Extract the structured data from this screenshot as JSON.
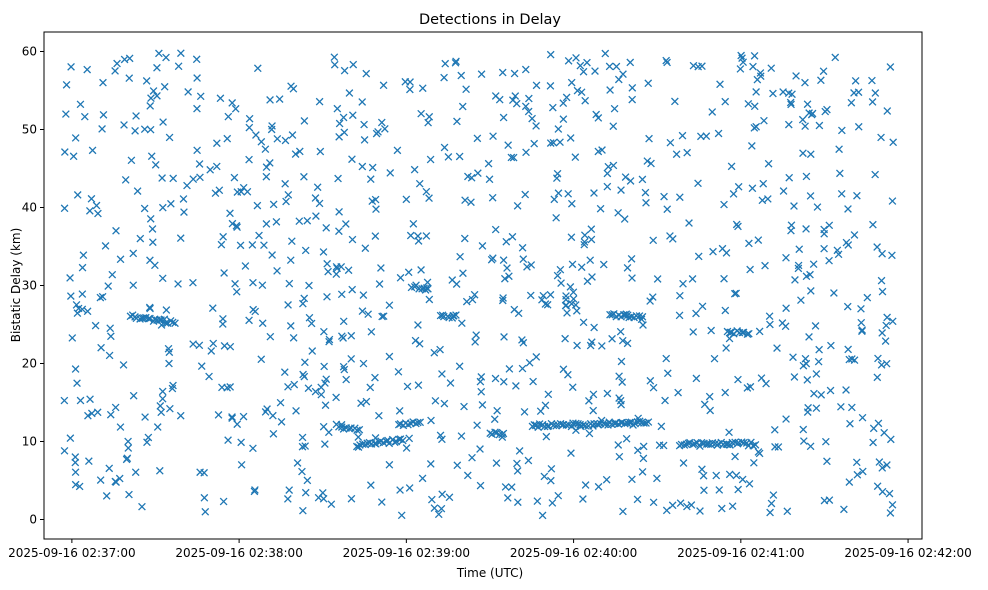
{
  "chart_data": {
    "type": "scatter",
    "title": "Detections in Delay",
    "xlabel": "Time (UTC)",
    "ylabel": "Bistatic Delay (km)",
    "marker": "x",
    "color": "#1f77b4",
    "grid": false,
    "legend": "none",
    "xlim": [
      "2025-09-16 02:36:50",
      "2025-09-16 02:42:05"
    ],
    "ylim": [
      -2.5,
      62.5
    ],
    "x_ticks": [
      "2025-09-16 02:37:00",
      "2025-09-16 02:38:00",
      "2025-09-16 02:39:00",
      "2025-09-16 02:40:00",
      "2025-09-16 02:41:00",
      "2025-09-16 02:42:00"
    ],
    "y_ticks": [
      "0",
      "10",
      "20",
      "30",
      "40",
      "50",
      "60"
    ],
    "x_range": [
      "2025-09-16 02:36:57",
      "2025-09-16 02:41:55"
    ],
    "y_range": [
      0.5,
      59.8
    ],
    "point_count": 1200,
    "tracks": [
      {
        "x_start": "2025-09-16 02:37:21",
        "x_end": "2025-09-16 02:37:37",
        "y_start": 26.0,
        "y_end": 25.3
      },
      {
        "x_start": "2025-09-16 02:38:35",
        "x_end": "2025-09-16 02:38:43",
        "y_start": 12.0,
        "y_end": 11.5
      },
      {
        "x_start": "2025-09-16 02:38:42",
        "x_end": "2025-09-16 02:38:59",
        "y_start": 9.5,
        "y_end": 10.2
      },
      {
        "x_start": "2025-09-16 02:38:57",
        "x_end": "2025-09-16 02:39:05",
        "y_start": 12.2,
        "y_end": 12.4
      },
      {
        "x_start": "2025-09-16 02:39:02",
        "x_end": "2025-09-16 02:39:08",
        "y_start": 30.0,
        "y_end": 29.5
      },
      {
        "x_start": "2025-09-16 02:39:12",
        "x_end": "2025-09-16 02:39:18",
        "y_start": 26.0,
        "y_end": 26.0
      },
      {
        "x_start": "2025-09-16 02:39:30",
        "x_end": "2025-09-16 02:39:35",
        "y_start": 11.0,
        "y_end": 11.0
      },
      {
        "x_start": "2025-09-16 02:39:45",
        "x_end": "2025-09-16 02:40:27",
        "y_start": 12.0,
        "y_end": 12.4
      },
      {
        "x_start": "2025-09-16 02:40:13",
        "x_end": "2025-09-16 02:40:25",
        "y_start": 26.2,
        "y_end": 25.8
      },
      {
        "x_start": "2025-09-16 02:40:38",
        "x_end": "2025-09-16 02:41:05",
        "y_start": 9.6,
        "y_end": 9.7
      },
      {
        "x_start": "2025-09-16 02:40:55",
        "x_end": "2025-09-16 02:41:03",
        "y_start": 24.0,
        "y_end": 24.0
      }
    ]
  }
}
